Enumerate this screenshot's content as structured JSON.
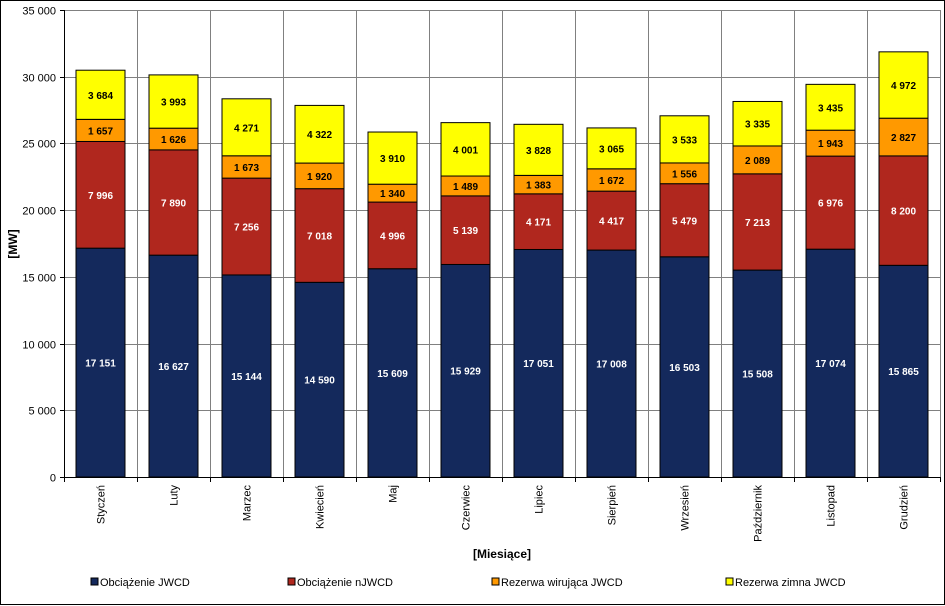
{
  "chart_data": {
    "type": "bar",
    "stacked": true,
    "xlabel": "[Miesiące]",
    "ylabel": "[MW]",
    "ylim": [
      0,
      35000
    ],
    "ytick_step": 5000,
    "grid": true,
    "legend_position": "bottom",
    "categories": [
      "Styczeń",
      "Luty",
      "Marzec",
      "Kwiecień",
      "Maj",
      "Czerwiec",
      "Lipiec",
      "Sierpień",
      "Wrzesień",
      "Październik",
      "Listopad",
      "Grudzień"
    ],
    "series": [
      {
        "name": "Obciążenie JWCD",
        "color": "#14295C",
        "label_color": "#FFFFFF",
        "values": [
          17151,
          16627,
          15144,
          14590,
          15609,
          15929,
          17051,
          17008,
          16503,
          15508,
          17074,
          15865
        ]
      },
      {
        "name": "Obciążenie nJWCD",
        "color": "#B0271E",
        "label_color": "#FFFFFF",
        "values": [
          7996,
          7890,
          7256,
          7018,
          4996,
          5139,
          4171,
          4417,
          5479,
          7213,
          6976,
          8200
        ]
      },
      {
        "name": "Rezerwa wirująca JWCD",
        "color": "#FF9900",
        "label_color": "#000000",
        "values": [
          1657,
          1626,
          1673,
          1920,
          1340,
          1489,
          1383,
          1672,
          1556,
          2089,
          1943,
          2827
        ]
      },
      {
        "name": "Rezerwa zimna JWCD",
        "color": "#FFFF00",
        "label_color": "#000000",
        "values": [
          3684,
          3993,
          4271,
          4322,
          3910,
          4001,
          3828,
          3065,
          3533,
          3335,
          3435,
          4972
        ]
      }
    ]
  }
}
